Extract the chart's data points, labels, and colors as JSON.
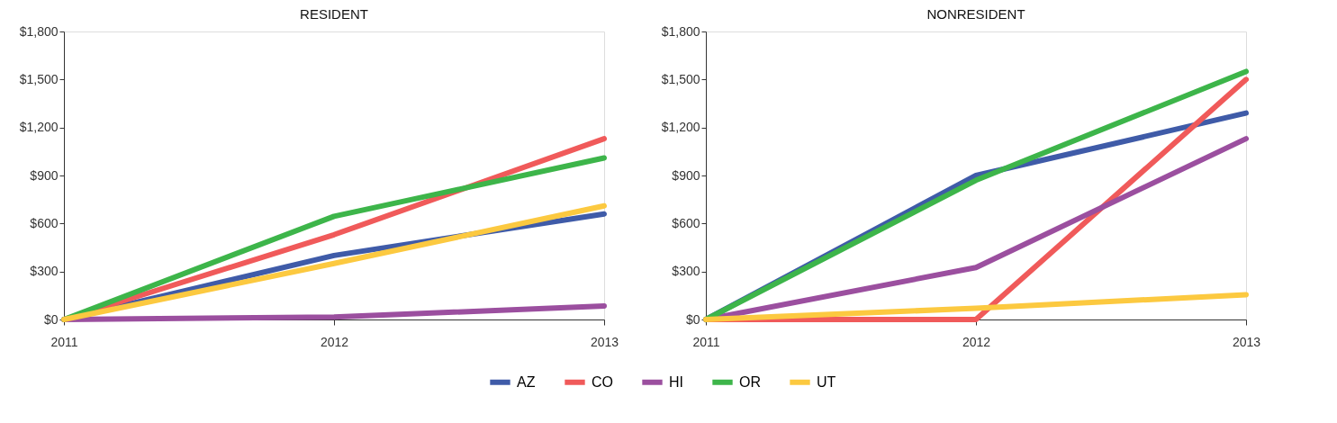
{
  "chart_data": [
    {
      "type": "line",
      "title": "RESIDENT",
      "x": [
        2011,
        2012,
        2013
      ],
      "xlim": [
        2011,
        2013
      ],
      "xticks": [
        2011,
        2012,
        2013
      ],
      "ylim": [
        0,
        1800
      ],
      "yticks": [
        {
          "value": 0,
          "label": "$0"
        },
        {
          "value": 300,
          "label": "$300"
        },
        {
          "value": 600,
          "label": "$600"
        },
        {
          "value": 900,
          "label": "$900"
        },
        {
          "value": 1200,
          "label": "$1,200"
        },
        {
          "value": 1500,
          "label": "$1,500"
        },
        {
          "value": 1800,
          "label": "$1,800"
        }
      ],
      "grid": false,
      "legend": "bottom",
      "marker": "none",
      "line_style": "solid",
      "series": [
        {
          "name": "AZ",
          "color": "#3f5ba8",
          "values": [
            0,
            400,
            660
          ]
        },
        {
          "name": "CO",
          "color": "#f05a5a",
          "values": [
            0,
            530,
            1130
          ]
        },
        {
          "name": "HI",
          "color": "#9b4f9f",
          "values": [
            0,
            15,
            85
          ]
        },
        {
          "name": "OR",
          "color": "#3db54a",
          "values": [
            0,
            645,
            1010
          ]
        },
        {
          "name": "UT",
          "color": "#fcc940",
          "values": [
            0,
            350,
            710
          ]
        }
      ]
    },
    {
      "type": "line",
      "title": "NONRESIDENT",
      "x": [
        2011,
        2012,
        2013
      ],
      "xlim": [
        2011,
        2013
      ],
      "xticks": [
        2011,
        2012,
        2013
      ],
      "ylim": [
        0,
        1800
      ],
      "yticks": [
        {
          "value": 0,
          "label": "$0"
        },
        {
          "value": 300,
          "label": "$300"
        },
        {
          "value": 600,
          "label": "$600"
        },
        {
          "value": 900,
          "label": "$900"
        },
        {
          "value": 1200,
          "label": "$1,200"
        },
        {
          "value": 1500,
          "label": "$1,500"
        },
        {
          "value": 1800,
          "label": "$1,800"
        }
      ],
      "grid": false,
      "legend": "bottom",
      "marker": "none",
      "line_style": "solid",
      "series": [
        {
          "name": "AZ",
          "color": "#3f5ba8",
          "values": [
            0,
            900,
            1290
          ]
        },
        {
          "name": "CO",
          "color": "#f05a5a",
          "values": [
            0,
            0,
            1500
          ]
        },
        {
          "name": "HI",
          "color": "#9b4f9f",
          "values": [
            0,
            325,
            1130
          ]
        },
        {
          "name": "OR",
          "color": "#3db54a",
          "values": [
            0,
            870,
            1550
          ]
        },
        {
          "name": "UT",
          "color": "#fcc940",
          "values": [
            0,
            70,
            155
          ]
        }
      ]
    }
  ]
}
